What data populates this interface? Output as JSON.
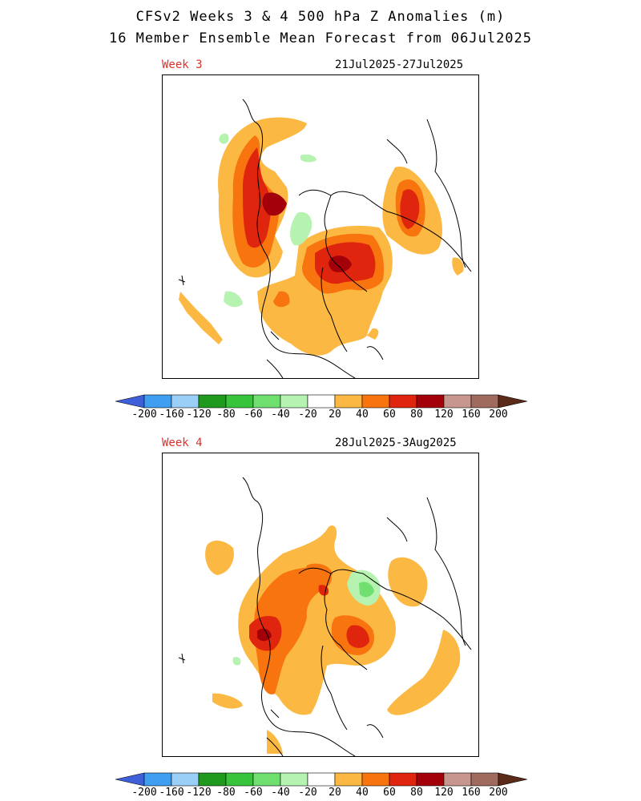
{
  "title_line1": "CFSv2 Weeks 3 & 4 500 hPa Z Anomalies (m)",
  "title_line2": "16 Member Ensemble Mean Forecast from 06Jul2025",
  "panels": [
    {
      "week": "Week 3",
      "dates": "21Jul2025-27Jul2025"
    },
    {
      "week": "Week 4",
      "dates": "28Jul2025-3Aug2025"
    }
  ],
  "colorbar": {
    "ticks": [
      "-200",
      "-160",
      "-120",
      "-80",
      "-60",
      "-40",
      "-20",
      "20",
      "40",
      "60",
      "80",
      "120",
      "160",
      "200"
    ],
    "colors": [
      "#3e5fd8",
      "#3f9ef0",
      "#9ad0f7",
      "#1f9a1f",
      "#37c43a",
      "#6fe070",
      "#b6f2b0",
      "#ffffff",
      "#fbb944",
      "#f8740f",
      "#e0250e",
      "#a30009",
      "#c7978f",
      "#9e6b5e",
      "#5c2a19"
    ]
  },
  "colors": {
    "week_label": "#e0302a"
  }
}
